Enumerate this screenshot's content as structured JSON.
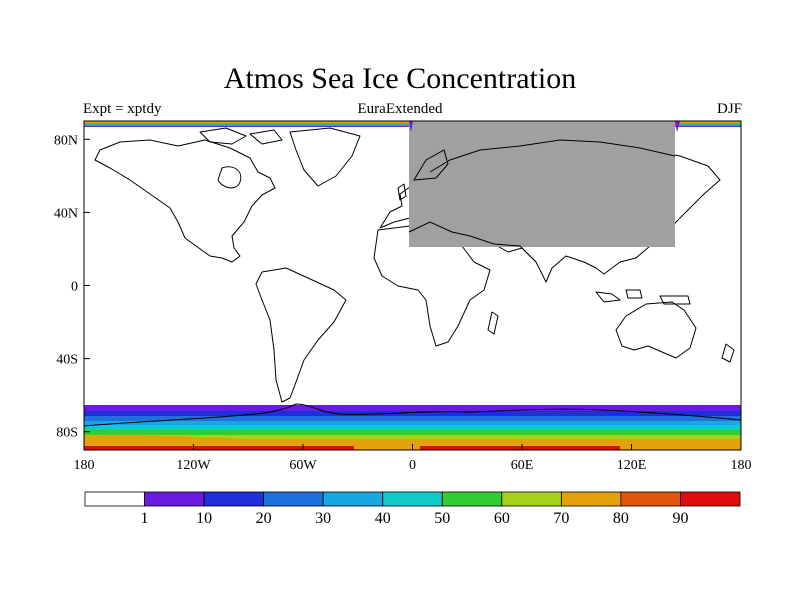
{
  "title": "Atmos Sea Ice Concentration",
  "subtitle_left": "Expt = xptdy",
  "subtitle_center": "EuraExtended",
  "subtitle_right": "DJF",
  "map": {
    "projection": "cylindrical-equidistant",
    "lon_range": [
      -180,
      180
    ],
    "lat_range": [
      -90,
      90
    ],
    "lon_ticks": [
      {
        "value": -180,
        "label": "180"
      },
      {
        "value": -120,
        "label": "120W"
      },
      {
        "value": -60,
        "label": "60W"
      },
      {
        "value": 0,
        "label": "0"
      },
      {
        "value": 60,
        "label": "60E"
      },
      {
        "value": 120,
        "label": "120E"
      },
      {
        "value": 180,
        "label": "180"
      }
    ],
    "lat_ticks": [
      {
        "value": 80,
        "label": "80N"
      },
      {
        "value": 40,
        "label": "40N"
      },
      {
        "value": 0,
        "label": "0"
      },
      {
        "value": -40,
        "label": "40S"
      },
      {
        "value": -80,
        "label": "80S"
      }
    ],
    "region_overlay": {
      "lon": [
        0,
        145
      ],
      "lat": [
        20,
        90
      ],
      "color": "#a0a0a0"
    }
  },
  "colorbar": {
    "colors": [
      "#ffffff",
      "#6a1be0",
      "#1c2fd9",
      "#1f6fdc",
      "#18a8e0",
      "#10c9c9",
      "#33cc33",
      "#a5d11b",
      "#e3a20c",
      "#e0550b",
      "#e00d0d"
    ],
    "labels": [
      "1",
      "10",
      "20",
      "30",
      "40",
      "50",
      "60",
      "70",
      "80",
      "90"
    ]
  }
}
